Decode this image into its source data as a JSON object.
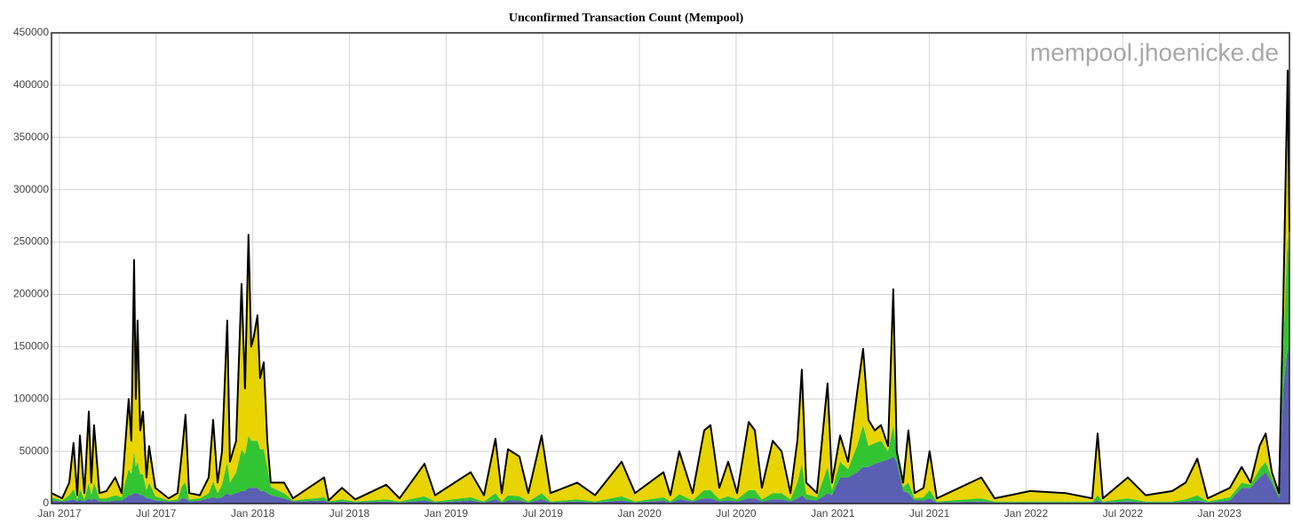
{
  "chart_data": {
    "type": "stacked_area",
    "title": "Unconfirmed Transaction Count (Mempool)",
    "watermark": "mempool.jhoenicke.de",
    "grid": true,
    "outline_color": "#000000",
    "xlim": [
      2016.959,
      2023.362
    ],
    "ylim": [
      0,
      450000
    ],
    "yticks": [
      0,
      50000,
      100000,
      150000,
      200000,
      250000,
      300000,
      350000,
      400000,
      450000
    ],
    "xticks": [
      {
        "value": 2017.0,
        "label": "Jan 2017"
      },
      {
        "value": 2017.5,
        "label": "Jul 2017"
      },
      {
        "value": 2018.0,
        "label": "Jan 2018"
      },
      {
        "value": 2018.5,
        "label": "Jul 2018"
      },
      {
        "value": 2019.0,
        "label": "Jan 2019"
      },
      {
        "value": 2019.5,
        "label": "Jul 2019"
      },
      {
        "value": 2020.0,
        "label": "Jan 2020"
      },
      {
        "value": 2020.5,
        "label": "Jul 2020"
      },
      {
        "value": 2021.0,
        "label": "Jan 2021"
      },
      {
        "value": 2021.5,
        "label": "Jul 2021"
      },
      {
        "value": 2022.0,
        "label": "Jan 2022"
      },
      {
        "value": 2022.5,
        "label": "Jul 2022"
      },
      {
        "value": 2023.0,
        "label": "Jan 2023"
      }
    ],
    "x": [
      2016.959,
      2017.014,
      2017.051,
      2017.073,
      2017.092,
      2017.106,
      2017.129,
      2017.152,
      2017.165,
      2017.179,
      2017.207,
      2017.243,
      2017.289,
      2017.322,
      2017.34,
      2017.358,
      2017.372,
      2017.386,
      2017.395,
      2017.404,
      2017.418,
      2017.432,
      2017.45,
      2017.464,
      2017.496,
      2017.565,
      2017.611,
      2017.634,
      2017.652,
      2017.671,
      2017.726,
      2017.772,
      2017.795,
      2017.818,
      2017.841,
      2017.868,
      2017.882,
      2017.914,
      2017.942,
      2017.96,
      2017.978,
      2017.992,
      2018.006,
      2018.024,
      2018.038,
      2018.057,
      2018.075,
      2018.093,
      2018.162,
      2018.208,
      2018.369,
      2018.392,
      2018.461,
      2018.53,
      2018.69,
      2018.759,
      2018.888,
      2018.943,
      2019.127,
      2019.196,
      2019.255,
      2019.288,
      2019.32,
      2019.379,
      2019.425,
      2019.494,
      2019.54,
      2019.678,
      2019.77,
      2019.908,
      2019.977,
      2020.124,
      2020.16,
      2020.206,
      2020.275,
      2020.335,
      2020.367,
      2020.413,
      2020.459,
      2020.505,
      2020.565,
      2020.597,
      2020.633,
      2020.689,
      2020.735,
      2020.781,
      2020.817,
      2020.84,
      2020.863,
      2020.918,
      2020.973,
      2020.996,
      2021.038,
      2021.079,
      2021.125,
      2021.157,
      2021.185,
      2021.217,
      2021.249,
      2021.286,
      2021.313,
      2021.331,
      2021.364,
      2021.391,
      2021.423,
      2021.469,
      2021.501,
      2021.538,
      2021.768,
      2021.837,
      2022.021,
      2022.204,
      2022.342,
      2022.37,
      2022.397,
      2022.526,
      2022.618,
      2022.756,
      2022.825,
      2022.885,
      2022.939,
      2023.054,
      2023.115,
      2023.161,
      2023.207,
      2023.239,
      2023.271,
      2023.308,
      2023.33,
      2023.353,
      2023.362
    ],
    "series": [
      {
        "color": "#5b5fb3",
        "values": [
          3000,
          2000,
          3000,
          4000,
          2000,
          4000,
          2000,
          5000,
          3000,
          5000,
          2000,
          2000,
          3000,
          3000,
          5000,
          8000,
          8000,
          10000,
          10000,
          10000,
          8000,
          8000,
          5000,
          5000,
          3000,
          2000,
          2000,
          5000,
          5000,
          2000,
          3000,
          5000,
          6000,
          5000,
          6000,
          10000,
          8000,
          10000,
          12000,
          12000,
          15000,
          15000,
          15000,
          15000,
          12000,
          12000,
          10000,
          8000,
          5000,
          2000,
          3000,
          1000,
          2000,
          1000,
          2000,
          1000,
          3000,
          1000,
          3000,
          1000,
          4000,
          1000,
          3000,
          3000,
          1000,
          4000,
          1000,
          2000,
          1000,
          3000,
          1000,
          3000,
          1000,
          4000,
          2000,
          5000,
          5000,
          2000,
          3000,
          2000,
          5000,
          5000,
          2000,
          4000,
          4000,
          2000,
          5000,
          8000,
          4000,
          3000,
          10000,
          8000,
          25000,
          25000,
          30000,
          35000,
          35000,
          38000,
          40000,
          42000,
          45000,
          40000,
          12000,
          10000,
          3000,
          3000,
          5000,
          1000,
          2000,
          1000,
          1000,
          1000,
          1000,
          3000,
          1000,
          2000,
          1000,
          1000,
          2000,
          3000,
          1000,
          3000,
          15000,
          15000,
          25000,
          30000,
          20000,
          5000,
          110000,
          150000,
          140000
        ]
      },
      {
        "color": "#33c433",
        "values": [
          3000,
          1000,
          5000,
          10000,
          2000,
          10000,
          2000,
          15000,
          5000,
          15000,
          3000,
          3000,
          5000,
          3000,
          15000,
          25000,
          20000,
          40000,
          25000,
          30000,
          20000,
          20000,
          8000,
          15000,
          4000,
          1000,
          2000,
          12000,
          15000,
          2000,
          2000,
          5000,
          15000,
          5000,
          12000,
          30000,
          12000,
          20000,
          40000,
          35000,
          50000,
          45000,
          45000,
          45000,
          40000,
          40000,
          25000,
          8000,
          5000,
          1000,
          3000,
          1000,
          2000,
          1000,
          2000,
          1000,
          4000,
          1000,
          3000,
          1000,
          6000,
          1000,
          5000,
          4000,
          1000,
          6000,
          1000,
          2000,
          1000,
          4000,
          1000,
          3000,
          1000,
          5000,
          1000,
          8000,
          8000,
          2000,
          4000,
          2000,
          8000,
          8000,
          2000,
          6000,
          6000,
          2000,
          15000,
          30000,
          5000,
          3000,
          25000,
          5000,
          15000,
          8000,
          25000,
          40000,
          20000,
          20000,
          20000,
          8000,
          30000,
          8000,
          4000,
          10000,
          2000,
          3000,
          8000,
          1000,
          3000,
          1000,
          1000,
          1000,
          1000,
          5000,
          1000,
          3000,
          1000,
          1000,
          2000,
          5000,
          1000,
          3000,
          5000,
          3000,
          8000,
          10000,
          5000,
          3000,
          40000,
          110000,
          80000
        ]
      },
      {
        "color": "#e8d400",
        "values": [
          4000,
          2000,
          12000,
          44000,
          4000,
          51000,
          6000,
          68000,
          12000,
          55000,
          5000,
          7000,
          17000,
          4000,
          35000,
          67000,
          32000,
          183000,
          65000,
          135000,
          42000,
          60000,
          12000,
          35000,
          8000,
          2000,
          6000,
          33000,
          65000,
          6000,
          3000,
          15000,
          59000,
          10000,
          32000,
          135000,
          20000,
          30000,
          158000,
          63000,
          192000,
          90000,
          100000,
          120000,
          68000,
          83000,
          25000,
          4000,
          10000,
          2000,
          19000,
          1000,
          11000,
          2000,
          14000,
          3000,
          31000,
          6000,
          24000,
          6000,
          52000,
          8000,
          44000,
          38000,
          8000,
          55000,
          8000,
          16000,
          6000,
          33000,
          8000,
          24000,
          6000,
          41000,
          7000,
          57000,
          62000,
          11000,
          33000,
          6000,
          65000,
          57000,
          11000,
          50000,
          40000,
          6000,
          40000,
          90000,
          11000,
          4000,
          80000,
          7000,
          25000,
          7000,
          50000,
          73000,
          25000,
          12000,
          15000,
          5000,
          130000,
          2000,
          4000,
          50000,
          5000,
          9000,
          37000,
          3000,
          20000,
          3000,
          10000,
          8000,
          3000,
          59000,
          3000,
          20000,
          6000,
          10000,
          16000,
          35000,
          3000,
          9000,
          15000,
          2000,
          22000,
          27000,
          5000,
          2000,
          40000,
          154000,
          40000
        ]
      }
    ]
  }
}
